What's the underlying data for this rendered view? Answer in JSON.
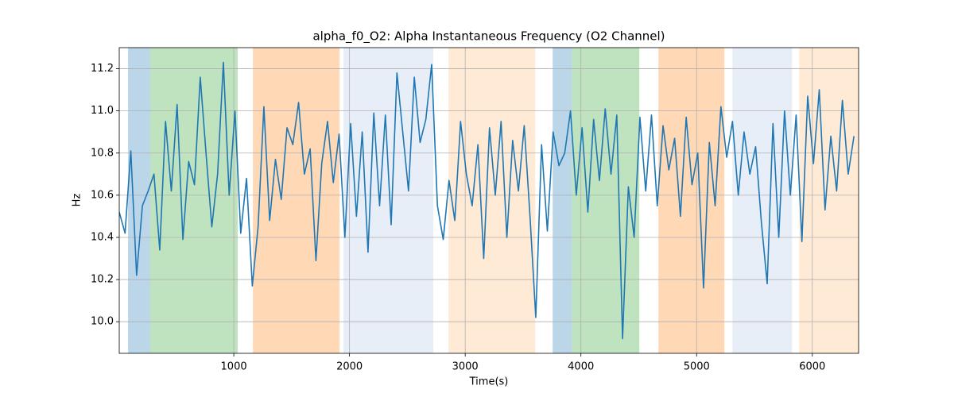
{
  "chart_data": {
    "type": "line",
    "title": "alpha_f0_O2: Alpha Instantaneous Frequency (O2 Channel)",
    "xlabel": "Time(s)",
    "ylabel": "Hz",
    "xlim": [
      10,
      6400
    ],
    "ylim": [
      9.85,
      11.3
    ],
    "xticks": [
      1000,
      2000,
      3000,
      4000,
      5000,
      6000
    ],
    "yticks": [
      {
        "value": 10.0,
        "label": "10.0"
      },
      10.2,
      10.4,
      10.6,
      10.8,
      {
        "value": 11.0,
        "label": "11.0"
      },
      11.2
    ],
    "grid": true,
    "spans": [
      {
        "start": 86,
        "end": 278,
        "color": "#1f77b4",
        "alpha": 0.3
      },
      {
        "start": 278,
        "end": 1034,
        "color": "#2ca02c",
        "alpha": 0.3
      },
      {
        "start": 1165,
        "end": 1914,
        "color": "#ff7f0e",
        "alpha": 0.3
      },
      {
        "start": 1948,
        "end": 2725,
        "color": "#aec7e8",
        "alpha": 0.3
      },
      {
        "start": 2856,
        "end": 3605,
        "color": "#ffbb78",
        "alpha": 0.3
      },
      {
        "start": 3756,
        "end": 3921,
        "color": "#1f77b4",
        "alpha": 0.3
      },
      {
        "start": 3921,
        "end": 4505,
        "color": "#2ca02c",
        "alpha": 0.3
      },
      {
        "start": 4670,
        "end": 5240,
        "color": "#ff7f0e",
        "alpha": 0.3
      },
      {
        "start": 5309,
        "end": 5825,
        "color": "#aec7e8",
        "alpha": 0.3
      },
      {
        "start": 5887,
        "end": 6400,
        "color": "#ffbb78",
        "alpha": 0.3
      }
    ],
    "x": [
      10,
      60,
      110,
      160,
      210,
      260,
      310,
      360,
      410,
      460,
      510,
      560,
      610,
      660,
      710,
      760,
      810,
      860,
      910,
      960,
      1010,
      1060,
      1110,
      1160,
      1210,
      1260,
      1310,
      1360,
      1410,
      1460,
      1510,
      1560,
      1610,
      1660,
      1710,
      1760,
      1810,
      1860,
      1910,
      1960,
      2010,
      2060,
      2110,
      2160,
      2210,
      2260,
      2310,
      2360,
      2410,
      2460,
      2510,
      2560,
      2610,
      2660,
      2710,
      2760,
      2810,
      2860,
      2910,
      2960,
      3010,
      3060,
      3110,
      3160,
      3210,
      3260,
      3310,
      3360,
      3410,
      3460,
      3510,
      3560,
      3610,
      3660,
      3710,
      3760,
      3810,
      3860,
      3910,
      3960,
      4010,
      4060,
      4110,
      4160,
      4210,
      4260,
      4310,
      4360,
      4410,
      4460,
      4510,
      4560,
      4610,
      4660,
      4710,
      4760,
      4810,
      4860,
      4910,
      4960,
      5010,
      5060,
      5110,
      5160,
      5210,
      5260,
      5310,
      5360,
      5410,
      5460,
      5510,
      5560,
      5610,
      5660,
      5710,
      5760,
      5810,
      5860,
      5910,
      5960,
      6010,
      6060,
      6110,
      6160,
      6210,
      6260,
      6310,
      6360
    ],
    "series": [
      {
        "color": "#1f77b4",
        "values": [
          10.52,
          10.42,
          10.81,
          10.22,
          10.55,
          10.62,
          10.7,
          10.34,
          10.95,
          10.62,
          11.03,
          10.39,
          10.76,
          10.65,
          11.16,
          10.8,
          10.45,
          10.7,
          11.23,
          10.6,
          11.0,
          10.42,
          10.68,
          10.17,
          10.45,
          11.02,
          10.48,
          10.77,
          10.58,
          10.92,
          10.84,
          11.04,
          10.7,
          10.82,
          10.29,
          10.75,
          10.95,
          10.66,
          10.89,
          10.4,
          10.94,
          10.5,
          10.9,
          10.33,
          10.99,
          10.55,
          10.98,
          10.46,
          11.18,
          10.9,
          10.62,
          11.16,
          10.85,
          10.96,
          11.22,
          10.55,
          10.39,
          10.67,
          10.48,
          10.95,
          10.7,
          10.55,
          10.84,
          10.3,
          10.92,
          10.6,
          10.95,
          10.4,
          10.86,
          10.62,
          10.93,
          10.5,
          10.02,
          10.84,
          10.43,
          10.9,
          10.74,
          10.8,
          11.0,
          10.6,
          10.92,
          10.52,
          10.96,
          10.67,
          11.01,
          10.7,
          10.98,
          9.92,
          10.64,
          10.4,
          10.97,
          10.62,
          10.98,
          10.55,
          10.93,
          10.72,
          10.87,
          10.5,
          10.97,
          10.65,
          10.8,
          10.16,
          10.85,
          10.55,
          11.02,
          10.78,
          10.95,
          10.6,
          10.9,
          10.7,
          10.83,
          10.47,
          10.18,
          10.94,
          10.4,
          11.0,
          10.6,
          10.98,
          10.38,
          11.07,
          10.75,
          11.1,
          10.53,
          10.88,
          10.62,
          11.05,
          10.7,
          10.88
        ]
      }
    ]
  }
}
